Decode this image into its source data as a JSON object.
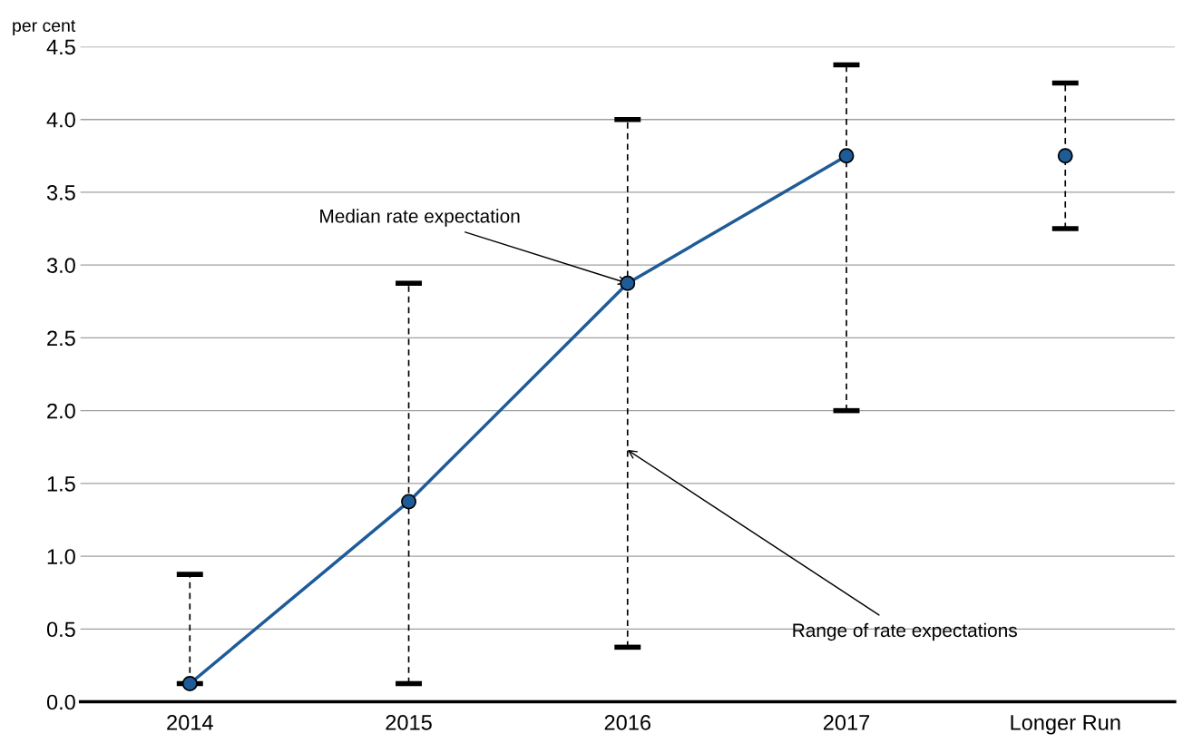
{
  "chart_data": {
    "type": "line",
    "ylabel": "per cent",
    "categories": [
      "2014",
      "2015",
      "2016",
      "2017",
      "Longer Run"
    ],
    "series": [
      {
        "color": "#1f5b97",
        "values": [
          0.125,
          1.375,
          2.875,
          3.75,
          null
        ],
        "errors": [
          [
            0.125,
            0.875
          ],
          [
            0.125,
            2.875
          ],
          [
            0.375,
            4.0
          ],
          [
            2.0,
            4.375
          ],
          null
        ]
      },
      {
        "type": "scatter",
        "color": "#1f5b97",
        "values": [
          null,
          null,
          null,
          null,
          3.75
        ],
        "errors": [
          null,
          null,
          null,
          null,
          [
            3.25,
            4.25
          ]
        ]
      }
    ],
    "marker": "circle",
    "ylim": [
      0,
      4.5
    ],
    "yticks": [
      {
        "value": 0,
        "label": "0.0"
      },
      {
        "value": 0.5,
        "label": "0.5"
      },
      {
        "value": 1,
        "label": "1.0"
      },
      {
        "value": 1.5,
        "label": "1.5"
      },
      {
        "value": 2,
        "label": "2.0"
      },
      {
        "value": 2.5,
        "label": "2.5"
      },
      {
        "value": 3,
        "label": "3.0"
      },
      {
        "value": 3.5,
        "label": "3.5"
      },
      {
        "value": 4,
        "label": "4.0"
      },
      {
        "value": 4.5,
        "label": "4.5"
      }
    ],
    "grid": "y",
    "annotations": [
      {
        "text": "Median rate expectation",
        "x": "2016",
        "y": 2.875
      },
      {
        "text": "Range of rate expectations",
        "x": "2016",
        "y": 1.73
      }
    ]
  }
}
